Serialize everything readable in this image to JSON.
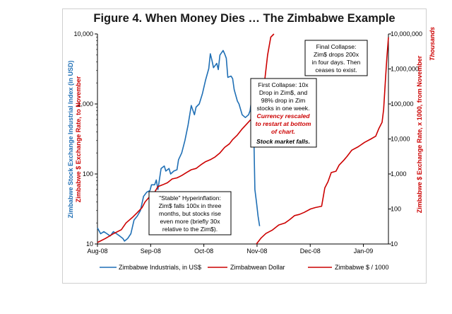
{
  "title": "Figure 4.  When Money Dies … The Zimbabwe Example",
  "colors": {
    "stock": "#1f6fb5",
    "currency": "#cc0000",
    "axis": "#000000"
  },
  "chart_data": {
    "type": "line",
    "title": "Figure 4.  When Money Dies … The Zimbabwe Example",
    "x_ticks": [
      "Aug-08",
      "Sep-08",
      "Oct-08",
      "Nov-08",
      "Dec-08",
      "Jan-09"
    ],
    "x_range_days": [
      0,
      183
    ],
    "left_axis": {
      "label_line1": "Zimbabwe Stock Exchange Industrial Index (in USD)",
      "label_line2": "Zimbabwe $ Exchange Rate, to November",
      "scale": "log",
      "ylim": [
        10,
        10000
      ],
      "tick_labels": [
        "10,000",
        "1,000",
        "100",
        "10"
      ]
    },
    "right_axis": {
      "label_line1": "Thousands",
      "label_line2": "Zimbabwe $ Exchange Rate, x 1000, from November",
      "scale": "log",
      "ylim": [
        10,
        10000000
      ],
      "tick_labels": [
        "10,000,000",
        "1,000,000",
        "100,000",
        "10,000",
        "1,000",
        "100",
        "10"
      ]
    },
    "legend": {
      "position": "bottom",
      "entries": [
        "Zimbabwe Industrials, in US$",
        "Zimbabwean Dollar",
        "Zimbabwe $ / 1000"
      ]
    },
    "series": [
      {
        "name": "Zimbabwe Industrials, in US$",
        "axis": "left",
        "color": "#1f6fb5",
        "points": [
          [
            0,
            17
          ],
          [
            2,
            14
          ],
          [
            4,
            15
          ],
          [
            6,
            14
          ],
          [
            8,
            13
          ],
          [
            10,
            15
          ],
          [
            12,
            14
          ],
          [
            14,
            13
          ],
          [
            16,
            12
          ],
          [
            17,
            11
          ],
          [
            19,
            12
          ],
          [
            21,
            14
          ],
          [
            23,
            22
          ],
          [
            25,
            25
          ],
          [
            27,
            30
          ],
          [
            29,
            48
          ],
          [
            31,
            55
          ],
          [
            33,
            58
          ],
          [
            34,
            70
          ],
          [
            36,
            70
          ],
          [
            37,
            82
          ],
          [
            38,
            60
          ],
          [
            40,
            120
          ],
          [
            42,
            130
          ],
          [
            43,
            110
          ],
          [
            45,
            120
          ],
          [
            46,
            100
          ],
          [
            48,
            110
          ],
          [
            50,
            115
          ],
          [
            51,
            160
          ],
          [
            53,
            200
          ],
          [
            55,
            300
          ],
          [
            57,
            500
          ],
          [
            59,
            950
          ],
          [
            61,
            700
          ],
          [
            62,
            900
          ],
          [
            64,
            1000
          ],
          [
            66,
            1400
          ],
          [
            68,
            2200
          ],
          [
            70,
            3200
          ],
          [
            71,
            5200
          ],
          [
            72,
            4200
          ],
          [
            73,
            3300
          ],
          [
            75,
            3800
          ],
          [
            76,
            3100
          ],
          [
            77,
            5000
          ],
          [
            79,
            5800
          ],
          [
            80,
            5200
          ],
          [
            81,
            4500
          ],
          [
            82,
            2400
          ],
          [
            84,
            2500
          ],
          [
            85,
            2300
          ],
          [
            86,
            1600
          ],
          [
            88,
            1100
          ],
          [
            89,
            1000
          ],
          [
            91,
            700
          ],
          [
            93,
            640
          ],
          [
            95,
            700
          ],
          [
            96,
            800
          ],
          [
            97,
            1200
          ],
          [
            98,
            1000
          ],
          [
            99,
            60
          ],
          [
            100,
            40
          ],
          [
            101,
            25
          ],
          [
            102,
            18
          ]
        ]
      },
      {
        "name": "Zimbabwean Dollar",
        "axis": "left",
        "color": "#cc0000",
        "points": [
          [
            0,
            10.5
          ],
          [
            5,
            12
          ],
          [
            10,
            14
          ],
          [
            15,
            16
          ],
          [
            18,
            20
          ],
          [
            22,
            24
          ],
          [
            25,
            28
          ],
          [
            28,
            33
          ],
          [
            30,
            40
          ],
          [
            33,
            48
          ],
          [
            36,
            55
          ],
          [
            38,
            66
          ],
          [
            41,
            70
          ],
          [
            44,
            75
          ],
          [
            47,
            85
          ],
          [
            50,
            88
          ],
          [
            53,
            95
          ],
          [
            56,
            105
          ],
          [
            59,
            115
          ],
          [
            62,
            120
          ],
          [
            65,
            135
          ],
          [
            68,
            150
          ],
          [
            71,
            160
          ],
          [
            74,
            175
          ],
          [
            77,
            200
          ],
          [
            80,
            240
          ],
          [
            83,
            270
          ],
          [
            85,
            310
          ],
          [
            88,
            360
          ],
          [
            91,
            440
          ],
          [
            94,
            520
          ],
          [
            97,
            620
          ],
          [
            100,
            800
          ],
          [
            103,
            1000
          ],
          [
            105,
            2000
          ],
          [
            107,
            5000
          ],
          [
            109,
            9000
          ],
          [
            111,
            10000
          ]
        ]
      },
      {
        "name": "Zimbabwe $ / 1000",
        "axis": "right",
        "color": "#cc0000",
        "points": [
          [
            100,
            10
          ],
          [
            103,
            15
          ],
          [
            106,
            20
          ],
          [
            110,
            25
          ],
          [
            114,
            35
          ],
          [
            118,
            40
          ],
          [
            121,
            50
          ],
          [
            124,
            65
          ],
          [
            127,
            70
          ],
          [
            130,
            80
          ],
          [
            134,
            100
          ],
          [
            137,
            110
          ],
          [
            141,
            120
          ],
          [
            143,
            400
          ],
          [
            145,
            600
          ],
          [
            147,
            1100
          ],
          [
            150,
            1200
          ],
          [
            152,
            1800
          ],
          [
            155,
            2500
          ],
          [
            157,
            3200
          ],
          [
            160,
            4800
          ],
          [
            164,
            6000
          ],
          [
            168,
            8000
          ],
          [
            172,
            10000
          ],
          [
            175,
            12000
          ],
          [
            177,
            20000
          ],
          [
            179,
            30000
          ],
          [
            180,
            70000
          ],
          [
            181,
            400000
          ],
          [
            182,
            2000000
          ],
          [
            183,
            8000000
          ]
        ]
      }
    ],
    "annotations": [
      {
        "id": "final",
        "lines": [
          "Final Collapse:",
          "Zim$ drops 200x",
          "in four days.  Then",
          "ceases to exist."
        ]
      },
      {
        "id": "first",
        "lines": [
          "First Collapse:  10x",
          "Drop in Zim$, and",
          "98% drop in Zim",
          "stocks in one week."
        ],
        "red_lines": [
          "Currency rescaled",
          "to restart at bottom",
          "of chart."
        ],
        "bottom_line": "Stock market falls."
      },
      {
        "id": "stable",
        "lines": [
          "\"Stable\" Hyperinflation:",
          "Zim$ falls 100x in three",
          "months, but stocks rise",
          "even more (briefly 30x",
          "relative to the Zim$)."
        ]
      }
    ]
  }
}
